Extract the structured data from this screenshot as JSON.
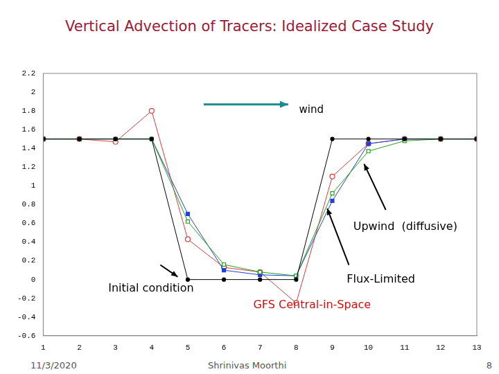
{
  "chart_data": {
    "type": "line",
    "title": "Vertical Advection of Tracers:  Idealized Case Study",
    "annotation": "wind",
    "x": [
      1,
      2,
      3,
      4,
      5,
      6,
      7,
      8,
      9,
      10,
      11,
      12,
      13
    ],
    "xlim": [
      1,
      13
    ],
    "xticks": [
      1,
      2,
      3,
      4,
      5,
      6,
      7,
      8,
      9,
      10,
      11,
      12,
      13
    ],
    "ylim": [
      -0.6,
      2.2
    ],
    "yticks": [
      -0.6,
      -0.4,
      -0.2,
      0,
      0.2,
      0.4,
      0.6,
      0.8,
      1,
      1.2,
      1.4,
      1.6,
      1.8,
      2,
      2.2
    ],
    "grid": false,
    "series": [
      {
        "name": "Initial condition",
        "color": "#000000",
        "marker": "circle",
        "values": [
          1.5,
          1.5,
          1.5,
          1.5,
          0,
          0,
          0,
          0,
          1.5,
          1.5,
          1.5,
          1.5,
          1.5
        ]
      },
      {
        "name": "Upwind  (diffusive)",
        "color": "#22a022",
        "marker": "open_square",
        "values": [
          1.5,
          1.5,
          1.5,
          1.5,
          0.62,
          0.16,
          0.08,
          0.04,
          0.92,
          1.37,
          1.48,
          1.5,
          1.5
        ]
      },
      {
        "name": "Flux-Limited",
        "color": "#1f3fe0",
        "marker": "square",
        "values": [
          1.5,
          1.5,
          1.5,
          1.5,
          0.7,
          0.1,
          0.05,
          0.04,
          0.84,
          1.45,
          1.5,
          1.5,
          1.5
        ]
      },
      {
        "name": "GFS Central-in-Space",
        "color": "#d83a3a",
        "marker": "open_circle",
        "values": [
          1.5,
          1.5,
          1.47,
          1.8,
          0.43,
          0.13,
          0.08,
          -0.25,
          1.1,
          1.45,
          1.5,
          1.5,
          1.5
        ]
      }
    ]
  },
  "footer": {
    "date": "11/3/2020",
    "author": "Shrinivas Moorthi",
    "page": "8"
  }
}
